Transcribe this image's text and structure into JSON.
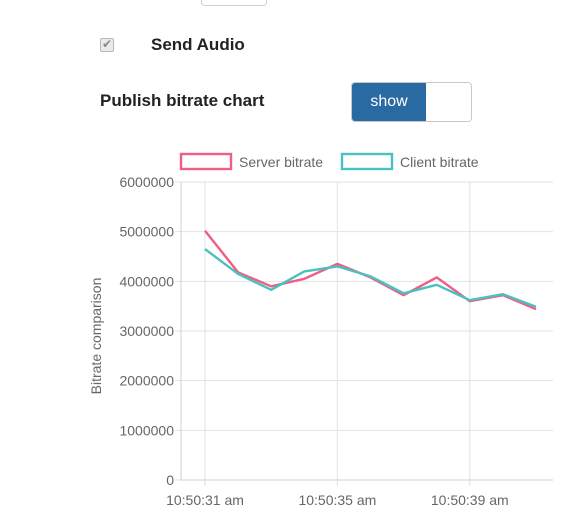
{
  "audio": {
    "label": "Send Audio",
    "checked": true
  },
  "publish": {
    "label": "Publish bitrate chart",
    "toggle_label": "show"
  },
  "chart_data": {
    "type": "line",
    "x": [
      "10:50:31 am",
      "",
      "",
      "",
      "10:50:35 am",
      "",
      "",
      "",
      "10:50:39 am",
      "",
      ""
    ],
    "x_tick_labels": [
      "10:50:31 am",
      "10:50:35 am",
      "10:50:39 am"
    ],
    "series": [
      {
        "name": "Server bitrate",
        "color": "#ee5f83",
        "values": [
          5020000,
          4180000,
          3900000,
          4050000,
          4350000,
          4080000,
          3720000,
          4080000,
          3600000,
          3720000,
          3440000
        ]
      },
      {
        "name": "Client bitrate",
        "color": "#4bc0c0",
        "values": [
          4650000,
          4150000,
          3830000,
          4200000,
          4300000,
          4100000,
          3760000,
          3930000,
          3620000,
          3740000,
          3490000
        ]
      }
    ],
    "y_tick_labels": [
      "0",
      "1000000",
      "2000000",
      "3000000",
      "4000000",
      "5000000",
      "6000000"
    ],
    "ylabel": "Bitrate comparison",
    "xlabel": "",
    "ylim": [
      0,
      6000000
    ],
    "grid": true,
    "legend_position": "top"
  }
}
